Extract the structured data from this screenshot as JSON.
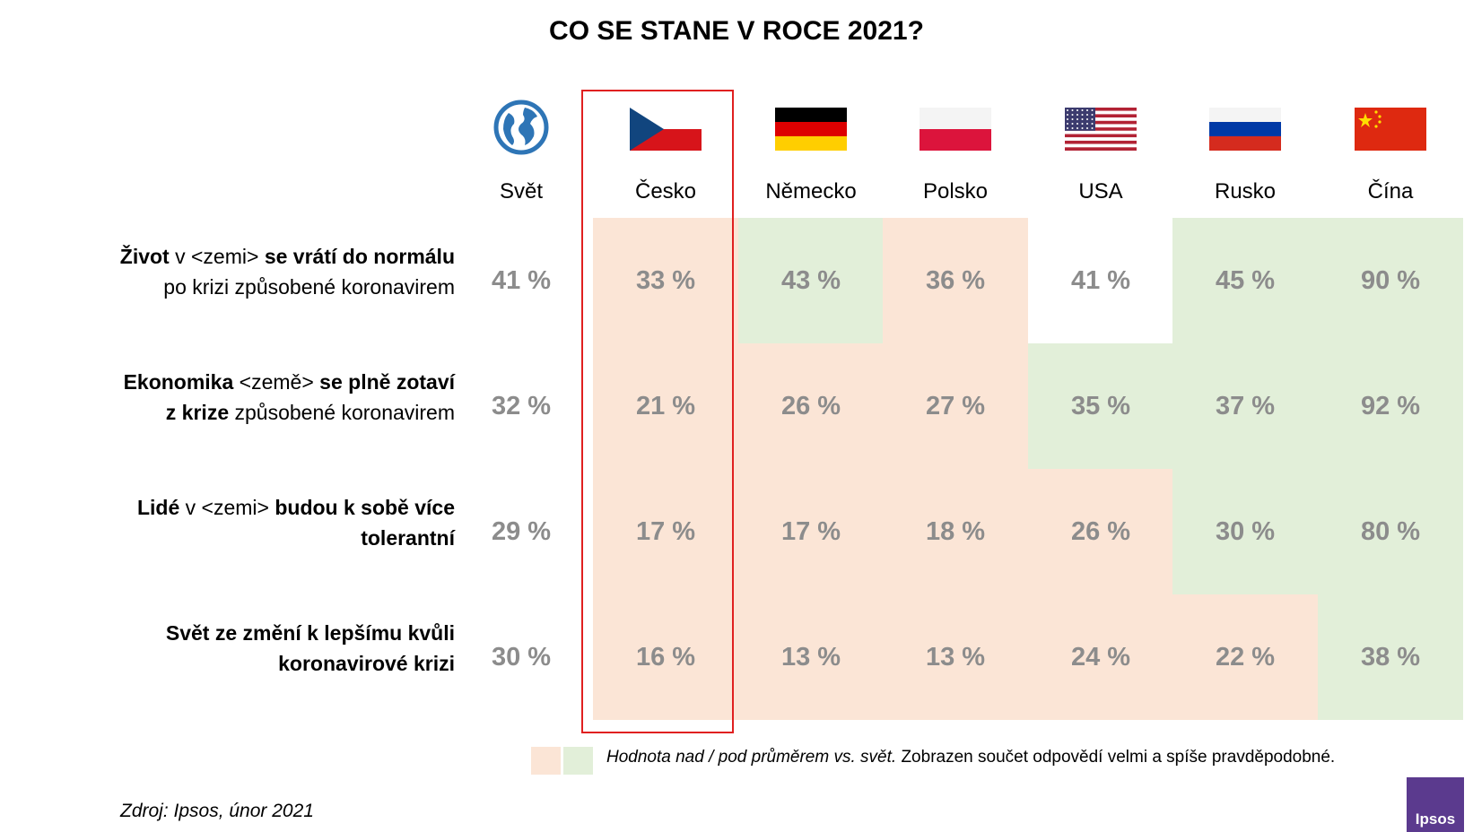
{
  "title": "CO SE STANE V ROCE 2021?",
  "columns": [
    "Svět",
    "Česko",
    "Německo",
    "Polsko",
    "USA",
    "Rusko",
    "Čína"
  ],
  "icons": [
    "globe-icon",
    "flag-czech-icon",
    "flag-germany-icon",
    "flag-poland-icon",
    "flag-usa-icon",
    "flag-russia-icon",
    "flag-china-icon"
  ],
  "colors": {
    "above": "#e2efd9",
    "below": "#fbe5d6",
    "highlight": "#e02020",
    "value": "#8c8c8c"
  },
  "rows": [
    {
      "label_parts": [
        {
          "t": "Život",
          "b": true
        },
        {
          "t": " v <zemi> ",
          "b": false
        },
        {
          "t": "se vrátí do normálu",
          "b": true
        },
        {
          "br": true
        },
        {
          "t": "po krizi způsobené  koronavirem",
          "b": false
        }
      ]
    },
    {
      "label_parts": [
        {
          "t": "Ekonomika",
          "b": true
        },
        {
          "t": " <země> ",
          "b": false
        },
        {
          "t": "se plně zotaví",
          "b": true
        },
        {
          "br": true
        },
        {
          "t": "z krize",
          "b": true
        },
        {
          "t": " způsobené  koronavirem",
          "b": false
        }
      ]
    },
    {
      "label_parts": [
        {
          "t": "Lidé",
          "b": true
        },
        {
          "t": " v <zemi> ",
          "b": false
        },
        {
          "t": "budou k sobě více",
          "b": true
        },
        {
          "br": true
        },
        {
          "t": "tolerantní",
          "b": true
        }
      ]
    },
    {
      "label_parts": [
        {
          "t": "Svět ze změní k lepšímu kvůli",
          "b": true
        },
        {
          "br": true
        },
        {
          "t": "koronavirové krizi",
          "b": true
        }
      ]
    }
  ],
  "chart_data": {
    "type": "table",
    "title": "CO SE STANE V ROCE 2021?",
    "categories": [
      "Svět",
      "Česko",
      "Německo",
      "Polsko",
      "USA",
      "Rusko",
      "Čína"
    ],
    "series": [
      {
        "name": "Život v <zemi> se vrátí do normálu po krizi způsobené koronavirem",
        "values": [
          41,
          33,
          43,
          36,
          41,
          45,
          90
        ],
        "labels": [
          "41 %",
          "33 %",
          "43 %",
          "36 %",
          "41 %",
          "45 %",
          "90 %"
        ],
        "shading": [
          "none",
          "below",
          "above",
          "below",
          "none",
          "above",
          "above"
        ]
      },
      {
        "name": "Ekonomika <země> se plně zotaví z krize způsobené koronavirem",
        "values": [
          32,
          21,
          26,
          27,
          35,
          37,
          92
        ],
        "labels": [
          "32 %",
          "21 %",
          "26 %",
          "27 %",
          "35 %",
          "37 %",
          "92 %"
        ],
        "shading": [
          "none",
          "below",
          "below",
          "below",
          "above",
          "above",
          "above"
        ]
      },
      {
        "name": "Lidé v <zemi> budou k sobě více tolerantní",
        "values": [
          29,
          17,
          17,
          18,
          26,
          30,
          80
        ],
        "labels": [
          "29 %",
          "17 %",
          "17 %",
          "18 %",
          "26 %",
          "30 %",
          "80 %"
        ],
        "shading": [
          "none",
          "below",
          "below",
          "below",
          "below",
          "above",
          "above"
        ]
      },
      {
        "name": "Svět ze změní k lepšímu kvůli koronavirové krizi",
        "values": [
          30,
          16,
          13,
          13,
          24,
          22,
          38
        ],
        "labels": [
          "30 %",
          "16 %",
          "13 %",
          "13 %",
          "24 %",
          "22 %",
          "38 %"
        ],
        "shading": [
          "none",
          "below",
          "below",
          "below",
          "below",
          "below",
          "above"
        ]
      }
    ],
    "highlighted_column": "Česko"
  },
  "legend": {
    "text_italic": "Hodnota nad / pod průměrem vs. svět.",
    "text_normal": " Zobrazen součet odpovědí velmi a spíše pravděpodobné."
  },
  "source": "Zdroj: Ipsos, únor 2021",
  "logo": "Ipsos"
}
